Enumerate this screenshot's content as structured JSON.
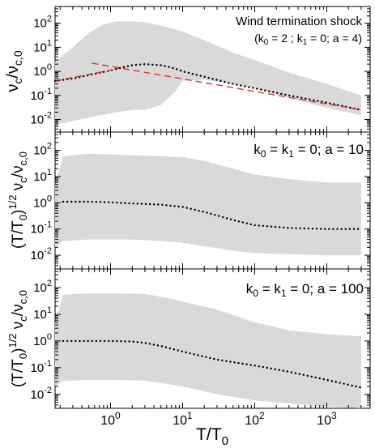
{
  "chart_data": [
    {
      "type": "area",
      "xscale": "log",
      "yscale": "log",
      "xlim": [
        0.17,
        4000
      ],
      "ylim": [
        0.003,
        500
      ],
      "ylabel": "νc/νc,0",
      "title_lines": [
        "Wind termination shock",
        "(k0 = 2 ; k1 = 0; a = 4)"
      ],
      "band_color": "#d9d9d9",
      "band_upper": {
        "x": [
          0.17,
          0.3,
          0.5,
          0.8,
          1.2,
          2,
          3,
          5,
          8,
          10,
          20,
          50,
          100,
          300,
          1000,
          3000
        ],
        "y": [
          2.5,
          10,
          40,
          90,
          120,
          120,
          110,
          80,
          55,
          45,
          20,
          6,
          3,
          0.9,
          0.3,
          0.1
        ]
      },
      "band_lower": {
        "x": [
          0.17,
          0.5,
          1,
          2,
          3,
          5,
          8,
          10,
          20,
          50,
          100,
          300,
          1000,
          3000
        ],
        "y": [
          0.006,
          0.012,
          0.018,
          0.025,
          0.025,
          0.04,
          0.15,
          0.4,
          0.45,
          0.3,
          0.2,
          0.08,
          0.03,
          0.015
        ]
      },
      "series": [
        {
          "style": "dotted",
          "color": "#000000",
          "x": [
            0.17,
            0.3,
            0.5,
            1,
            1.5,
            2,
            3,
            5,
            8,
            10,
            20,
            50,
            100,
            300,
            1000,
            3000
          ],
          "y": [
            0.4,
            0.5,
            0.7,
            1.1,
            1.5,
            1.8,
            2.0,
            1.8,
            1.3,
            1.0,
            0.6,
            0.3,
            0.2,
            0.1,
            0.05,
            0.025
          ]
        },
        {
          "style": "dashed",
          "color": "#e03030",
          "x": [
            0.55,
            3000
          ],
          "y": [
            2.2,
            0.025
          ]
        },
        {
          "style": "dashed",
          "color": "#e03030",
          "x": [
            0.17,
            1.3
          ],
          "y": [
            0.4,
            1.3
          ]
        }
      ]
    },
    {
      "type": "area",
      "xscale": "log",
      "yscale": "log",
      "xlim": [
        0.17,
        4000
      ],
      "ylim": [
        0.003,
        500
      ],
      "ylabel": "(T/T0)1/2 νc/νc,0",
      "title_lines": [
        "k0 = k1 = 0; a = 10"
      ],
      "band_color": "#d9d9d9",
      "band_upper": {
        "x": [
          0.17,
          0.22,
          0.5,
          1,
          2,
          5,
          10,
          20,
          50,
          100,
          300,
          1000,
          3000
        ],
        "y": [
          5,
          60,
          75,
          70,
          65,
          60,
          55,
          40,
          20,
          12,
          8,
          6,
          6
        ]
      },
      "band_lower": {
        "x": [
          0.17,
          0.22,
          0.5,
          1,
          2,
          5,
          10,
          20,
          50,
          100,
          300,
          1000,
          3000
        ],
        "y": [
          0.02,
          0.035,
          0.04,
          0.04,
          0.04,
          0.035,
          0.03,
          0.022,
          0.015,
          0.012,
          0.011,
          0.01,
          0.01
        ]
      },
      "series": [
        {
          "style": "dotted",
          "color": "#000000",
          "x": [
            0.22,
            0.5,
            1,
            2,
            5,
            10,
            20,
            50,
            100,
            300,
            1000,
            3000
          ],
          "y": [
            1.1,
            1.1,
            1.05,
            0.95,
            0.85,
            0.7,
            0.45,
            0.22,
            0.14,
            0.11,
            0.1,
            0.1
          ]
        }
      ]
    },
    {
      "type": "area",
      "xscale": "log",
      "yscale": "log",
      "xlim": [
        0.17,
        4000
      ],
      "ylim": [
        0.003,
        500
      ],
      "xlabel": "T/T0",
      "ylabel": "(T/T0)1/2 νc/νc,0",
      "title_lines": [
        "k0 = k1 = 0; a = 100"
      ],
      "band_color": "#d9d9d9",
      "band_upper": {
        "x": [
          0.17,
          0.22,
          0.5,
          1,
          3,
          5,
          10,
          30,
          100,
          300,
          1000,
          3000
        ],
        "y": [
          5,
          55,
          60,
          60,
          58,
          45,
          30,
          15,
          5,
          2.5,
          1.8,
          1.5
        ]
      },
      "band_lower": {
        "x": [
          0.17,
          0.22,
          0.5,
          1,
          3,
          10,
          30,
          100,
          300,
          1000,
          3000
        ],
        "y": [
          0.02,
          0.032,
          0.035,
          0.035,
          0.033,
          0.02,
          0.01,
          0.006,
          0.0045,
          0.0035,
          0.003
        ]
      },
      "series": [
        {
          "style": "dotted",
          "color": "#000000",
          "x": [
            0.22,
            0.5,
            1,
            2,
            3,
            5,
            10,
            30,
            100,
            300,
            1000,
            3000
          ],
          "y": [
            1.0,
            1.0,
            1.0,
            0.95,
            0.85,
            0.65,
            0.4,
            0.2,
            0.12,
            0.07,
            0.035,
            0.018
          ]
        }
      ]
    }
  ],
  "axes": {
    "y_ticks": [
      "10-2",
      "10-1",
      "100",
      "101",
      "102"
    ],
    "x_ticks": [
      "100",
      "101",
      "102",
      "103"
    ]
  }
}
